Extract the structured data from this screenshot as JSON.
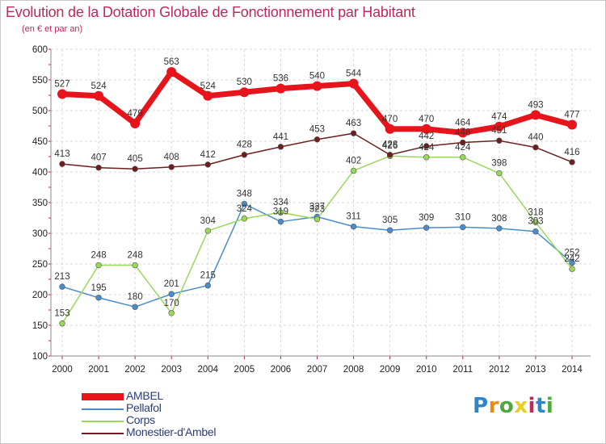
{
  "title": "Evolution de la Dotation Globale de Fonctionnement par Habitant",
  "subtitle": "(en € et par an)",
  "logo": {
    "text": "Proxiti",
    "colors": [
      "#2e86c8",
      "#e88a1a",
      "#4fa83c",
      "#e8d020",
      "#c0285a",
      "#2e86c8",
      "#4fa83c"
    ]
  },
  "chart_data": {
    "type": "line",
    "categories": [
      "2000",
      "2001",
      "2002",
      "2003",
      "2004",
      "2005",
      "2006",
      "2007",
      "2008",
      "2009",
      "2010",
      "2011",
      "2012",
      "2013",
      "2014"
    ],
    "ylim": [
      100,
      600
    ],
    "yticks": [
      100,
      150,
      200,
      250,
      300,
      350,
      400,
      450,
      500,
      550,
      600
    ],
    "grid": true,
    "series": [
      {
        "name": "AMBEL",
        "color": "#e8141c",
        "emphasis": true,
        "values": [
          527,
          524,
          479,
          563,
          524,
          530,
          536,
          540,
          544,
          470,
          470,
          464,
          474,
          493,
          477
        ]
      },
      {
        "name": "Pellafol",
        "color": "#4a8ccc",
        "emphasis": false,
        "values": [
          213,
          195,
          180,
          201,
          215,
          348,
          319,
          327,
          311,
          305,
          309,
          310,
          308,
          303,
          252
        ]
      },
      {
        "name": "Corps",
        "color": "#9ad85a",
        "emphasis": false,
        "values": [
          153,
          248,
          248,
          170,
          304,
          324,
          334,
          323,
          402,
          426,
          424,
          424,
          398,
          318,
          242
        ]
      },
      {
        "name": "Monestier-d'Ambel",
        "color": "#6e1e1e",
        "emphasis": false,
        "values": [
          413,
          407,
          405,
          408,
          412,
          428,
          441,
          453,
          463,
          428,
          442,
          448,
          451,
          440,
          416
        ]
      }
    ],
    "legend": [
      "AMBEL",
      "Pellafol",
      "Corps",
      "Monestier-d'Ambel"
    ]
  }
}
